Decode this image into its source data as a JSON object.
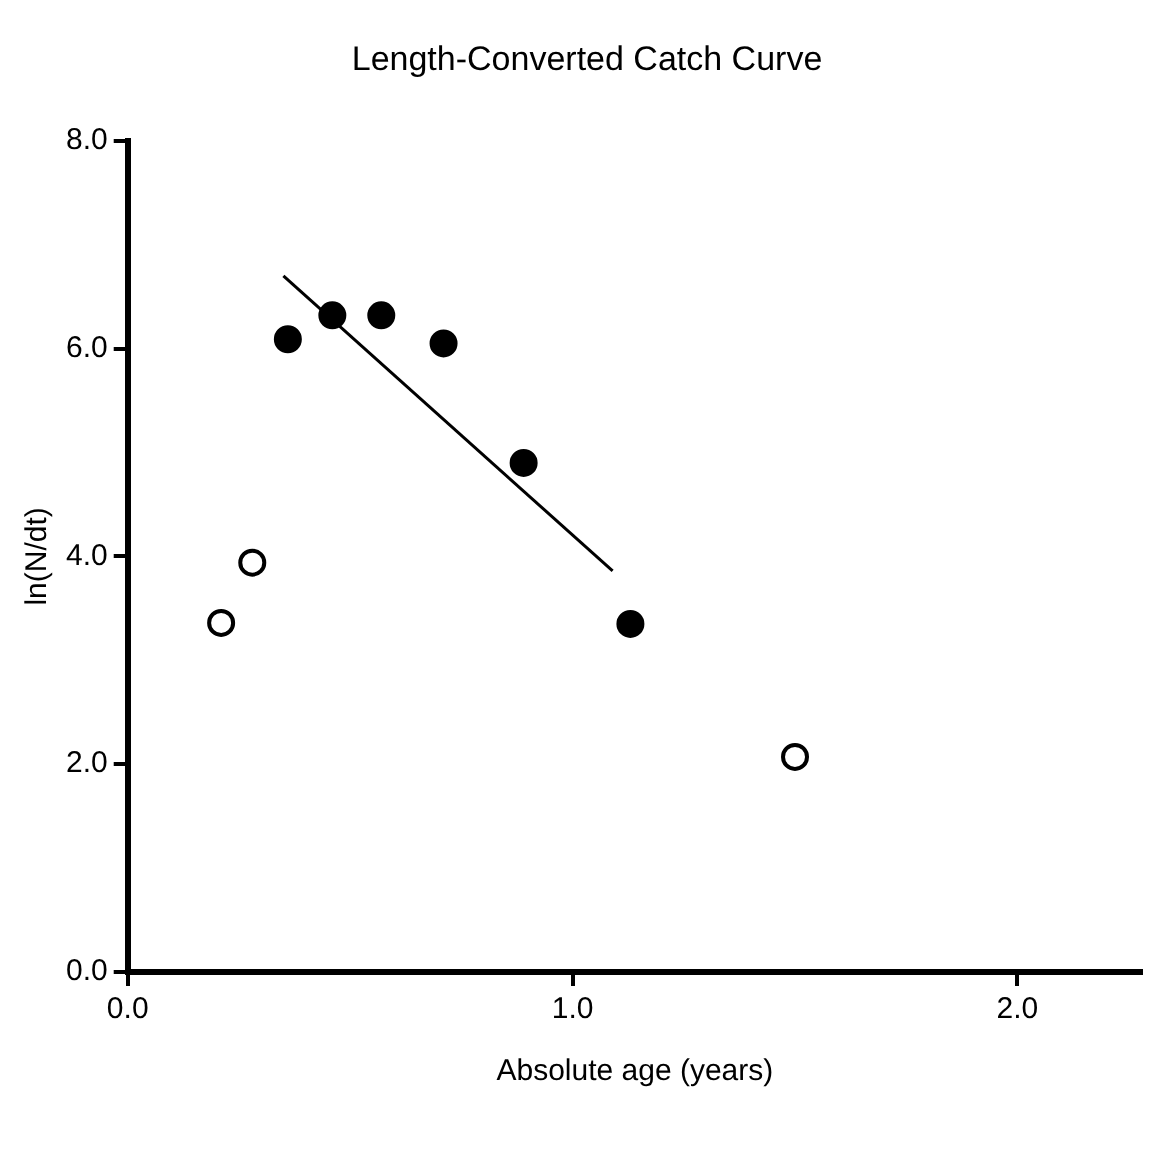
{
  "chart_data": {
    "type": "scatter",
    "title": "Length-Converted Catch Curve",
    "xlabel": "Absolute age (years)",
    "ylabel": "ln(N/dt)",
    "xlim": [
      0,
      2.28
    ],
    "ylim": [
      0,
      8
    ],
    "xticks": [
      {
        "value": 0,
        "label": "0.0"
      },
      {
        "value": 1,
        "label": "1.0"
      },
      {
        "value": 2,
        "label": "2.0"
      }
    ],
    "yticks": [
      {
        "value": 0,
        "label": "0.0"
      },
      {
        "value": 2,
        "label": "2.0"
      },
      {
        "value": 4,
        "label": "4.0"
      },
      {
        "value": 6,
        "label": "6.0"
      },
      {
        "value": 8,
        "label": "8.0"
      }
    ],
    "grid": false,
    "legend": false,
    "marker": "circle",
    "series": [
      {
        "color": "#ffffff",
        "x": [
          0.21,
          0.28,
          1.5
        ],
        "values": [
          3.36,
          3.94,
          2.07
        ]
      },
      {
        "color": "#000000",
        "x": [
          0.36,
          0.46,
          0.57,
          0.71,
          0.89,
          1.13
        ],
        "values": [
          6.09,
          6.32,
          6.32,
          6.05,
          4.9,
          3.35
        ]
      },
      {
        "type": "line",
        "color": "#000000",
        "marker": "none",
        "x": [
          0.35,
          1.09
        ],
        "values": [
          6.7,
          3.86
        ]
      }
    ]
  }
}
